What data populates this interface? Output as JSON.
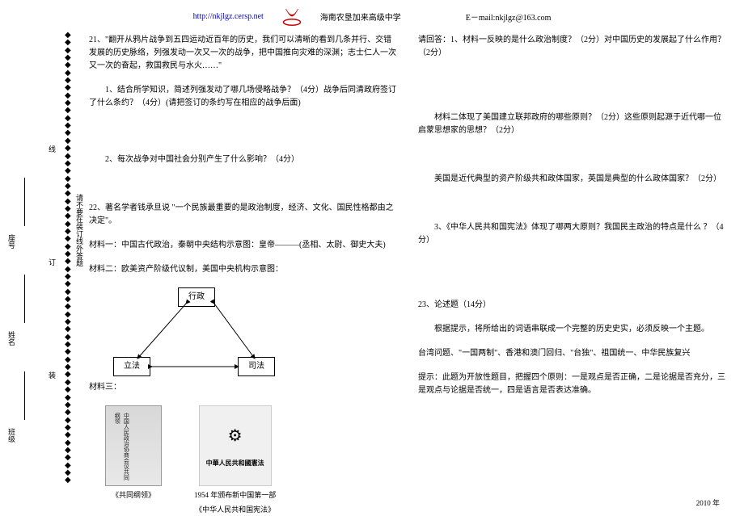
{
  "header": {
    "url": "http://nkjlgz.cersp.net",
    "school": "海南农垦加来高级中学",
    "email": "E－mail:nkjlgz@163.com"
  },
  "binding": {
    "labels": [
      "班级",
      "姓名",
      "座号"
    ],
    "note": "请不要在装订线外答题",
    "marks": [
      "装",
      "订",
      "线"
    ]
  },
  "left": {
    "q21_intro": "21、\"翻开从鸦片战争到五四运动近百年的历史，我们可以清晰的看到几条并行、交错发展的历史脉络，列强发动一次又一次的战争，把中国推向灾难的深渊；志士仁人一次又一次的奋起，救国救民与水火……\"",
    "q21_1": "1、结合所学知识，简述列强发动了哪几场侵略战争？（4分）战争后同清政府签订了什么条约？（4分）(请把签订的条约写在相应的战争后面)",
    "q21_2": "2、每次战争对中国社会分别产生了什么影响？（4分）",
    "q22_intro": "22、著名学者钱承旦说 \"一个民族最重要的是政治制度，经济、文化、国民性格都由之决定\"。",
    "q22_m1": "材料一：中国古代政治，秦朝中央结构示意图：皇帝———(丞相、太尉、御史大夫)",
    "q22_m2": "材料二：欧美资产阶级代议制，美国中央机构示意图：",
    "tri": {
      "top": "行政",
      "left": "立法",
      "right": "司法"
    },
    "q22_m3": "材料三：",
    "img1_inner": "中国人民政治协商会议共同纲领",
    "img1_cap": "《共同纲领》",
    "img2_inner": "中華人民共和國憲法",
    "img2_cap_a": "1954 年颁布新中国第一部",
    "img2_cap_b": "《中华人民共和国宪法》"
  },
  "right": {
    "r1": "请回答：1、材料一反映的是什么政治制度？（2分）对中国历史的发展起了什么作用？（2分）",
    "r2": "材料二体现了美国建立联邦政府的哪些原则？（2分）这些原则起源于近代哪一位启蒙思想家的思想？（2分）",
    "r3": "美国是近代典型的资产阶级共和政体国家，英国是典型的什么政体国家？（2分）",
    "r4": "3、《中华人民共和国宪法》体现了哪两大原则？我国民主政治的特点是什么 ？（4分）",
    "q23_title": "23、论述题（14分）",
    "q23_a": "根据提示，将所给出的词语串联成一个完整的历史史实，必须反映一个主题。",
    "q23_b": "台湾问题、\"一国两制\"、香港和澳门回归、\"台独\"、祖国统一、中华民族复兴",
    "q23_c": "提示：此题为开放性题目，把握四个原则：一是观点是否正确，二是论据是否充分，三是观点与论据是否统一，四是语言是否表达准确。"
  },
  "footer": "2010 年"
}
